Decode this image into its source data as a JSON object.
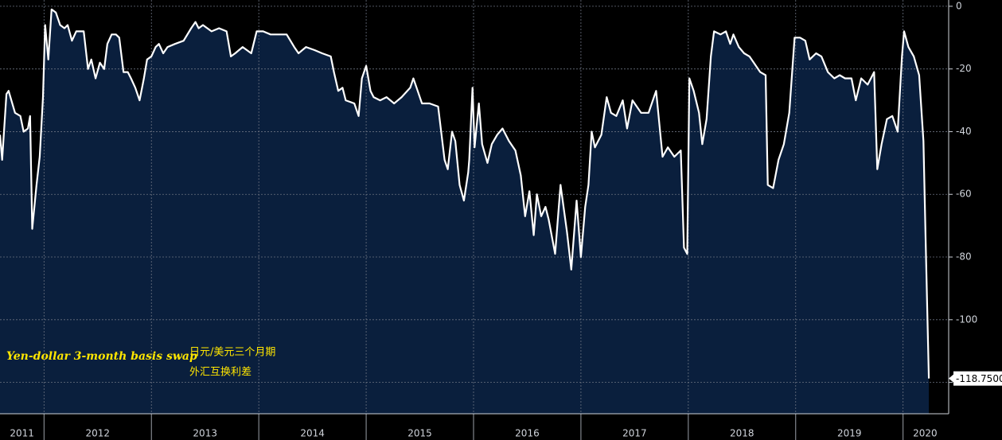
{
  "chart_data": {
    "type": "area",
    "annotations": [
      "Yen-dollar 3-month basis swap",
      "日元/美元三个月期",
      "外汇互换利差"
    ],
    "last_value_label": "-118.7500",
    "color": "#ffffff",
    "fill_color": "#0a1f3d",
    "background": "#000000",
    "grid": true,
    "y_axis_side": "right",
    "xlim": [
      2011.59,
      2020.41
    ],
    "xticks": [
      2011,
      2012,
      2013,
      2014,
      2015,
      2016,
      2017,
      2018,
      2019,
      2020
    ],
    "ylim": [
      -130,
      2
    ],
    "yticks": [
      0,
      -20,
      -40,
      -60,
      -80,
      -100,
      -120
    ],
    "x": [
      2011.59,
      2011.61,
      2011.65,
      2011.67,
      2011.73,
      2011.78,
      2011.81,
      2011.85,
      2011.87,
      2011.89,
      2011.93,
      2011.96,
      2011.99,
      2012.01,
      2012.04,
      2012.07,
      2012.11,
      2012.15,
      2012.19,
      2012.22,
      2012.26,
      2012.3,
      2012.33,
      2012.37,
      2012.41,
      2012.44,
      2012.48,
      2012.52,
      2012.56,
      2012.59,
      2012.63,
      2012.67,
      2012.7,
      2012.74,
      2012.78,
      2012.81,
      2012.85,
      2012.89,
      2012.93,
      2012.96,
      2013.0,
      2013.04,
      2013.07,
      2013.11,
      2013.15,
      2013.22,
      2013.3,
      2013.37,
      2013.41,
      2013.44,
      2013.48,
      2013.56,
      2013.63,
      2013.7,
      2013.74,
      2013.78,
      2013.85,
      2013.93,
      2013.98,
      2014.04,
      2014.11,
      2014.19,
      2014.26,
      2014.33,
      2014.37,
      2014.44,
      2014.52,
      2014.59,
      2014.67,
      2014.7,
      2014.74,
      2014.78,
      2014.81,
      2014.89,
      2014.93,
      2014.96,
      2015.0,
      2015.04,
      2015.07,
      2015.13,
      2015.19,
      2015.26,
      2015.33,
      2015.41,
      2015.44,
      2015.48,
      2015.52,
      2015.59,
      2015.67,
      2015.73,
      2015.76,
      2015.8,
      2015.83,
      2015.87,
      2015.91,
      2015.95,
      2015.96,
      2015.99,
      2016.01,
      2016.05,
      2016.08,
      2016.13,
      2016.17,
      2016.22,
      2016.27,
      2016.33,
      2016.39,
      2016.44,
      2016.48,
      2016.52,
      2016.56,
      2016.59,
      2016.63,
      2016.67,
      2016.7,
      2016.76,
      2016.81,
      2016.87,
      2016.91,
      2016.96,
      2017.0,
      2017.04,
      2017.07,
      2017.1,
      2017.13,
      2017.19,
      2017.24,
      2017.28,
      2017.33,
      2017.39,
      2017.43,
      2017.48,
      2017.56,
      2017.63,
      2017.7,
      2017.76,
      2017.81,
      2017.87,
      2017.93,
      2017.96,
      2017.99,
      2018.01,
      2018.05,
      2018.1,
      2018.13,
      2018.17,
      2018.21,
      2018.24,
      2018.3,
      2018.35,
      2018.39,
      2018.42,
      2018.47,
      2018.52,
      2018.57,
      2018.61,
      2018.67,
      2018.72,
      2018.74,
      2018.79,
      2018.84,
      2018.89,
      2018.94,
      2018.99,
      2019.04,
      2019.09,
      2019.13,
      2019.19,
      2019.24,
      2019.3,
      2019.36,
      2019.41,
      2019.46,
      2019.52,
      2019.56,
      2019.61,
      2019.67,
      2019.73,
      2019.76,
      2019.8,
      2019.85,
      2019.9,
      2019.95,
      2019.99,
      2020.01,
      2020.05,
      2020.1,
      2020.15,
      2020.19,
      2020.21,
      2020.24
    ],
    "values": [
      -41,
      -49,
      -28,
      -27,
      -34,
      -35,
      -40,
      -39,
      -35,
      -71,
      -57,
      -48,
      -29,
      -6,
      -17,
      -1,
      -2,
      -6,
      -7,
      -6,
      -11,
      -8,
      -8,
      -8,
      -20,
      -17,
      -23,
      -18,
      -20,
      -12,
      -9,
      -9,
      -10,
      -21,
      -21,
      -23,
      -26,
      -30,
      -23,
      -17,
      -16,
      -13,
      -12,
      -15,
      -13,
      -12,
      -11,
      -7,
      -5,
      -7,
      -6,
      -8,
      -7,
      -8,
      -16,
      -15,
      -13,
      -15,
      -8,
      -8,
      -9,
      -9,
      -9,
      -13,
      -15,
      -13,
      -14,
      -15,
      -16,
      -21,
      -27,
      -26,
      -30,
      -31,
      -35,
      -23,
      -19,
      -27,
      -29,
      -30,
      -29,
      -31,
      -29,
      -26,
      -23,
      -27,
      -31,
      -31,
      -32,
      -49,
      -52,
      -40,
      -43,
      -57,
      -62,
      -53,
      -49,
      -26,
      -45,
      -31,
      -44,
      -50,
      -44,
      -41,
      -39,
      -43,
      -46,
      -54,
      -67,
      -59,
      -73,
      -60,
      -67,
      -64,
      -68,
      -79,
      -57,
      -72,
      -84,
      -62,
      -80,
      -64,
      -57,
      -40,
      -45,
      -41,
      -29,
      -34,
      -35,
      -30,
      -39,
      -30,
      -34,
      -34,
      -27,
      -48,
      -45,
      -48,
      -46,
      -77,
      -79,
      -23,
      -27,
      -34,
      -44,
      -36,
      -16,
      -8,
      -9,
      -8,
      -12,
      -9,
      -13,
      -15,
      -16,
      -18,
      -21,
      -22,
      -57,
      -58,
      -49,
      -44,
      -34,
      -10,
      -10,
      -11,
      -17,
      -15,
      -16,
      -21,
      -23,
      -22,
      -23,
      -23,
      -30,
      -23,
      -25,
      -21,
      -52,
      -44,
      -36,
      -35,
      -40,
      -16,
      -8,
      -13,
      -16,
      -22,
      -43,
      -74,
      -118.75
    ]
  }
}
